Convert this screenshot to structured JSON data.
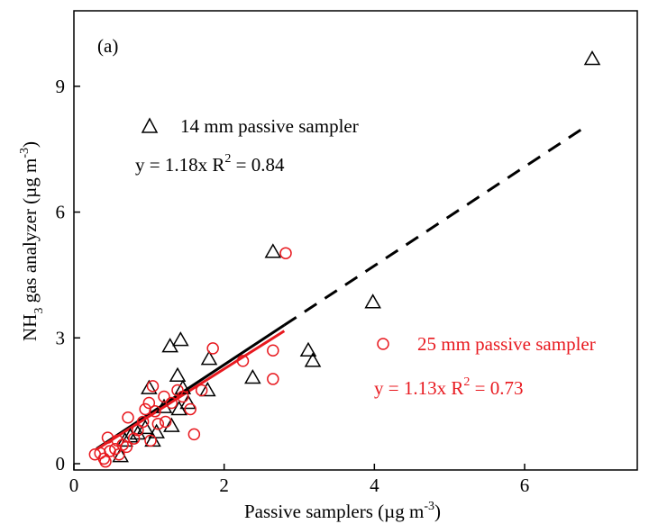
{
  "chart_data": {
    "type": "scatter",
    "panel_label": "(a)",
    "xlabel": {
      "main": "Passive samplers (µg m",
      "sup": "-3",
      "end": ")"
    },
    "ylabel": {
      "pre": "NH",
      "sub": "3",
      "main": " gas analyzer (µg m",
      "sup": "-3",
      "end": ")"
    },
    "xlim": [
      0,
      7.5
    ],
    "ylim": [
      -0.15,
      10.8
    ],
    "x_ticks": [
      0,
      2,
      4,
      6
    ],
    "y_ticks": [
      0,
      3,
      6,
      9
    ],
    "grid": false,
    "legend_placement": "in-plot annotations",
    "series": [
      {
        "name": "14 mm passive sampler",
        "marker": "triangle",
        "color": "#000000",
        "equation": {
          "prefix": "y = 1.18x  R",
          "sup": "2",
          "suffix": " = 0.84"
        },
        "fit": {
          "slope": 1.18,
          "x_range": [
            0.3,
            6.8
          ],
          "solid_end": 2.8,
          "style": "solid-then-dashed"
        },
        "points": [
          [
            0.62,
            0.18
          ],
          [
            0.68,
            0.55
          ],
          [
            0.75,
            0.65
          ],
          [
            0.85,
            0.72
          ],
          [
            0.95,
            0.85
          ],
          [
            1.05,
            0.55
          ],
          [
            1.1,
            0.75
          ],
          [
            1.0,
            1.8
          ],
          [
            1.2,
            1.35
          ],
          [
            1.3,
            0.9
          ],
          [
            1.28,
            2.8
          ],
          [
            1.42,
            2.95
          ],
          [
            1.38,
            2.1
          ],
          [
            1.45,
            1.8
          ],
          [
            1.52,
            1.45
          ],
          [
            1.4,
            1.3
          ],
          [
            1.8,
            2.5
          ],
          [
            1.78,
            1.75
          ],
          [
            2.38,
            2.05
          ],
          [
            2.65,
            5.05
          ],
          [
            3.12,
            2.7
          ],
          [
            3.18,
            2.45
          ],
          [
            3.98,
            3.85
          ],
          [
            6.9,
            9.65
          ]
        ]
      },
      {
        "name": "25 mm passive sampler",
        "marker": "circle",
        "color": "#e8191f",
        "equation": {
          "prefix": "y = 1.13x  R",
          "sup": "2",
          "suffix": " = 0.73"
        },
        "fit": {
          "slope": 1.13,
          "x_range": [
            0.3,
            2.8
          ],
          "style": "solid"
        },
        "points": [
          [
            0.28,
            0.22
          ],
          [
            0.35,
            0.25
          ],
          [
            0.4,
            0.12
          ],
          [
            0.42,
            0.05
          ],
          [
            0.45,
            0.62
          ],
          [
            0.48,
            0.3
          ],
          [
            0.55,
            0.35
          ],
          [
            0.58,
            0.55
          ],
          [
            0.6,
            0.22
          ],
          [
            0.65,
            0.45
          ],
          [
            0.7,
            0.4
          ],
          [
            0.72,
            1.1
          ],
          [
            0.8,
            0.6
          ],
          [
            0.85,
            0.8
          ],
          [
            0.92,
            1.0
          ],
          [
            0.95,
            1.3
          ],
          [
            1.0,
            1.45
          ],
          [
            1.02,
            0.55
          ],
          [
            1.05,
            1.85
          ],
          [
            1.08,
            1.25
          ],
          [
            1.12,
            0.95
          ],
          [
            1.2,
            1.6
          ],
          [
            1.22,
            1.0
          ],
          [
            1.3,
            1.45
          ],
          [
            1.38,
            1.75
          ],
          [
            1.45,
            1.6
          ],
          [
            1.55,
            1.3
          ],
          [
            1.6,
            0.7
          ],
          [
            1.7,
            1.75
          ],
          [
            1.85,
            2.75
          ],
          [
            2.25,
            2.45
          ],
          [
            2.65,
            2.7
          ],
          [
            2.65,
            2.02
          ],
          [
            2.82,
            5.02
          ]
        ]
      }
    ]
  }
}
